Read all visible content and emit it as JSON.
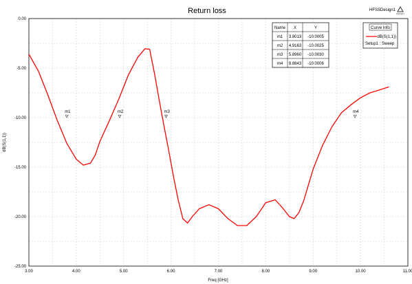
{
  "chart_data": {
    "type": "line",
    "title": "Return loss",
    "design_name": "HFSSDesign1",
    "logo_text": "ANSOFT",
    "xlabel": "Freq [GHz]",
    "ylabel": "dB(S(1,1))",
    "xlim": [
      3.0,
      11.0
    ],
    "ylim": [
      -25.0,
      0.0
    ],
    "x_ticks": [
      "3.00",
      "4.00",
      "5.00",
      "6.00",
      "7.00",
      "8.00",
      "9.00",
      "10.00",
      "11.00"
    ],
    "y_ticks": [
      "0.00",
      "-5.00",
      "-10.00",
      "-15.00",
      "-20.00",
      "-25.00"
    ],
    "grid": true,
    "series": [
      {
        "name": "dB(S(1,1))",
        "setup": "Setup1 : Sweep",
        "color": "#ff0000",
        "x": [
          3.0,
          3.2,
          3.4,
          3.6,
          3.8,
          4.0,
          4.15,
          4.3,
          4.4,
          4.5,
          4.7,
          4.9,
          5.1,
          5.3,
          5.45,
          5.55,
          5.65,
          5.75,
          5.85,
          5.95,
          6.05,
          6.15,
          6.25,
          6.35,
          6.45,
          6.6,
          6.8,
          7.0,
          7.2,
          7.4,
          7.6,
          7.8,
          8.0,
          8.2,
          8.35,
          8.5,
          8.6,
          8.7,
          8.8,
          8.9,
          9.0,
          9.2,
          9.4,
          9.6,
          9.8,
          10.0,
          10.2,
          10.4,
          10.6
        ],
        "y": [
          -3.6,
          -5.3,
          -7.7,
          -10.3,
          -12.6,
          -14.2,
          -14.8,
          -14.6,
          -13.8,
          -12.4,
          -10.3,
          -8.1,
          -5.7,
          -3.9,
          -3.05,
          -3.1,
          -5.5,
          -8.2,
          -10.8,
          -13.3,
          -15.9,
          -18.3,
          -20.2,
          -20.65,
          -20.0,
          -19.2,
          -18.8,
          -19.2,
          -20.2,
          -20.9,
          -20.9,
          -20.0,
          -18.6,
          -18.3,
          -19.1,
          -20.0,
          -20.2,
          -19.6,
          -18.4,
          -16.8,
          -15.2,
          -12.8,
          -10.9,
          -9.5,
          -8.7,
          -8.0,
          -7.5,
          -7.2,
          -6.9
        ]
      }
    ],
    "markers": [
      {
        "name": "m1",
        "x": 3.8013,
        "y": -10.0005
      },
      {
        "name": "m2",
        "x": 4.9163,
        "y": -10.0025
      },
      {
        "name": "m3",
        "x": 5.896,
        "y": -10.003
      },
      {
        "name": "m4",
        "x": 9.8843,
        "y": -10.0006
      }
    ],
    "marker_table": {
      "headers": [
        "Name",
        "X",
        "Y"
      ],
      "rows": [
        [
          "m1",
          "3.8013",
          "-10.0005"
        ],
        [
          "m2",
          "4.9163",
          "-10.0025"
        ],
        [
          "m3",
          "5.8960",
          "-10.0030"
        ],
        [
          "m4",
          "9.8843",
          "-10.0006"
        ]
      ]
    },
    "legend": {
      "title": "Curve Info",
      "placement": "top-right"
    }
  }
}
